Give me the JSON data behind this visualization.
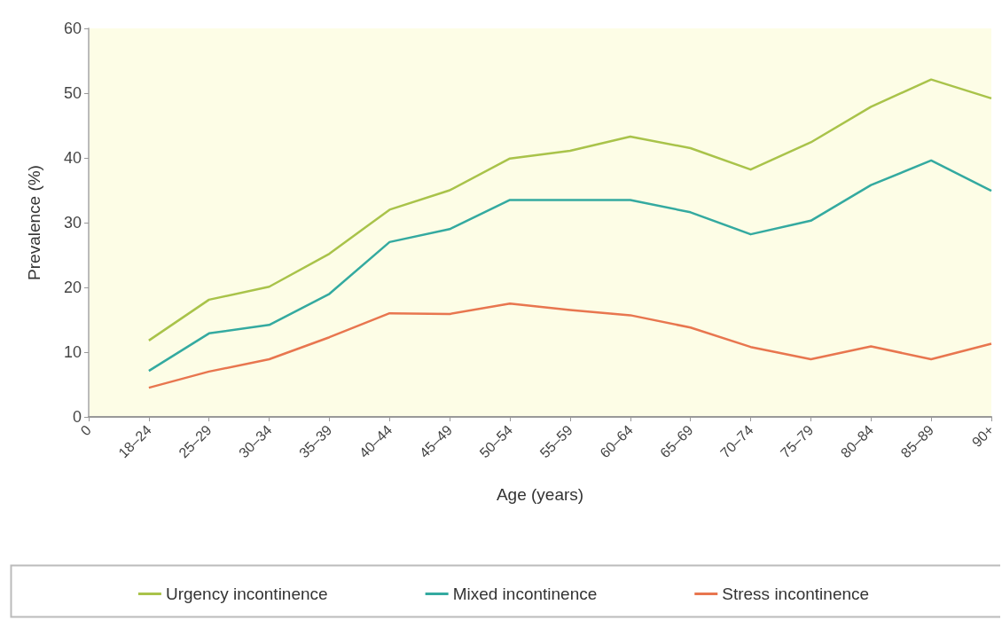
{
  "chart_data": {
    "type": "line",
    "xlabel": "Age (years)",
    "ylabel": "Prevalence (%)",
    "categories": [
      "0",
      "18–24",
      "25–29",
      "30–34",
      "35–39",
      "40–44",
      "45–49",
      "50–54",
      "55–59",
      "60–64",
      "65–69",
      "70–74",
      "75–79",
      "80–84",
      "85–89",
      "90+"
    ],
    "series": [
      {
        "name": "Urgency incontinence",
        "color": "#a9c34a",
        "values": [
          null,
          11.8,
          18.1,
          20.1,
          25.2,
          32,
          35,
          39.9,
          41.1,
          43.3,
          41.5,
          38.2,
          42.4,
          47.9,
          52.1,
          49.2
        ]
      },
      {
        "name": "Mixed incontinence",
        "color": "#34aaa0",
        "values": [
          null,
          7.1,
          12.9,
          14.2,
          19,
          27,
          29,
          33.5,
          33.5,
          33.5,
          31.6,
          28.2,
          30.3,
          35.8,
          39.6,
          34.9
        ]
      },
      {
        "name": "Stress incontinence",
        "color": "#e8764f",
        "values": [
          null,
          4.5,
          7,
          8.9,
          12.3,
          16,
          15.9,
          17.5,
          16.5,
          15.7,
          13.8,
          10.8,
          8.9,
          10.9,
          8.9,
          11.3
        ]
      }
    ],
    "ylim": [
      0,
      60
    ],
    "yticks": [
      0,
      10,
      20,
      30,
      40,
      50,
      60
    ],
    "grid": false,
    "legend": "bottom",
    "marker": "none",
    "line_style": "solid"
  }
}
